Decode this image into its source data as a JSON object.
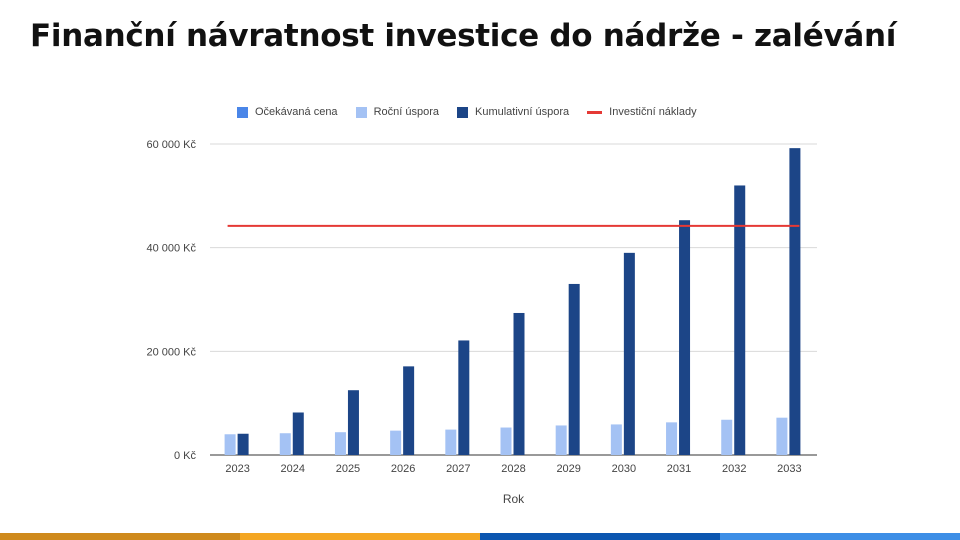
{
  "title": "Finanční návratnost investice do nádrže - zalévání",
  "chart_data": {
    "type": "bar",
    "categories": [
      "2023",
      "2024",
      "2025",
      "2026",
      "2027",
      "2028",
      "2029",
      "2030",
      "2031",
      "2032",
      "2033"
    ],
    "series": [
      {
        "name": "Očekávaná cena",
        "color": "#4a86e8",
        "values": [
          0,
          0,
          0,
          0,
          0,
          0,
          0,
          0,
          0,
          0,
          0
        ]
      },
      {
        "name": "Roční úspora",
        "color": "#a4c2f4",
        "values": [
          4000,
          4200,
          4400,
          4700,
          4900,
          5300,
          5700,
          5900,
          6300,
          6800,
          7200
        ]
      },
      {
        "name": "Kumulativní úspora",
        "color": "#1c4587",
        "values": [
          4100,
          8200,
          12500,
          17100,
          22100,
          27400,
          33000,
          39000,
          45300,
          52000,
          59200
        ]
      }
    ],
    "reference_line": {
      "name": "Investiční náklady",
      "color": "#e53935",
      "value": 44200
    },
    "xlabel": "Rok",
    "ylabel": "",
    "ylim": [
      0,
      60000
    ],
    "yticks": [
      0,
      20000,
      40000,
      60000
    ],
    "ytick_labels": [
      "0 Kč",
      "20 000 Kč",
      "40 000 Kč",
      "60 000 Kč"
    ],
    "grid": true,
    "legend_position": "top"
  },
  "footer_colors": [
    "#cf8a1c",
    "#f4a622",
    "#0b56b0",
    "#3d8ee6"
  ]
}
